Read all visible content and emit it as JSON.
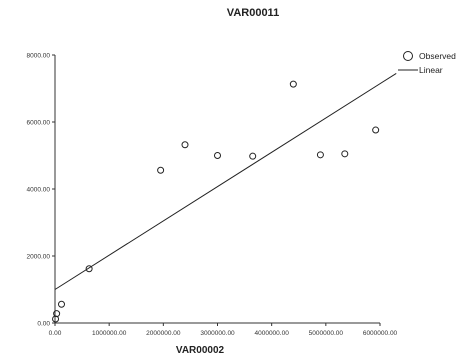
{
  "chart_data": {
    "type": "scatter",
    "title": "VAR00011",
    "xlabel": "VAR00002",
    "ylabel": "",
    "xlim": [
      0,
      6000000
    ],
    "ylim": [
      0,
      8000
    ],
    "x_ticks": [
      0,
      1000000,
      2000000,
      3000000,
      4000000,
      5000000,
      6000000
    ],
    "x_tick_labels": [
      "0.00",
      "1000000.00",
      "2000000.00",
      "3000000.00",
      "4000000.00",
      "5000000.00",
      "6000000.00"
    ],
    "y_ticks": [
      0,
      2000,
      4000,
      6000,
      8000
    ],
    "y_tick_labels": [
      "0.00",
      "2000.00",
      "4000.00",
      "6000.00",
      "8000.00"
    ],
    "series": [
      {
        "name": "Observed",
        "kind": "scatter",
        "points": [
          {
            "x": 10000,
            "y": 120
          },
          {
            "x": 30000,
            "y": 280
          },
          {
            "x": 120000,
            "y": 560
          },
          {
            "x": 630000,
            "y": 1620
          },
          {
            "x": 1950000,
            "y": 4560
          },
          {
            "x": 2400000,
            "y": 5320
          },
          {
            "x": 3000000,
            "y": 5000
          },
          {
            "x": 3650000,
            "y": 4980
          },
          {
            "x": 4400000,
            "y": 7130
          },
          {
            "x": 4900000,
            "y": 5020
          },
          {
            "x": 5350000,
            "y": 5050
          },
          {
            "x": 5920000,
            "y": 5760
          }
        ]
      },
      {
        "name": "Linear",
        "kind": "line",
        "points": [
          {
            "x": 0,
            "y": 1000
          },
          {
            "x": 6300000,
            "y": 7450
          }
        ]
      }
    ],
    "grid": false,
    "legend_position": "top-right"
  }
}
